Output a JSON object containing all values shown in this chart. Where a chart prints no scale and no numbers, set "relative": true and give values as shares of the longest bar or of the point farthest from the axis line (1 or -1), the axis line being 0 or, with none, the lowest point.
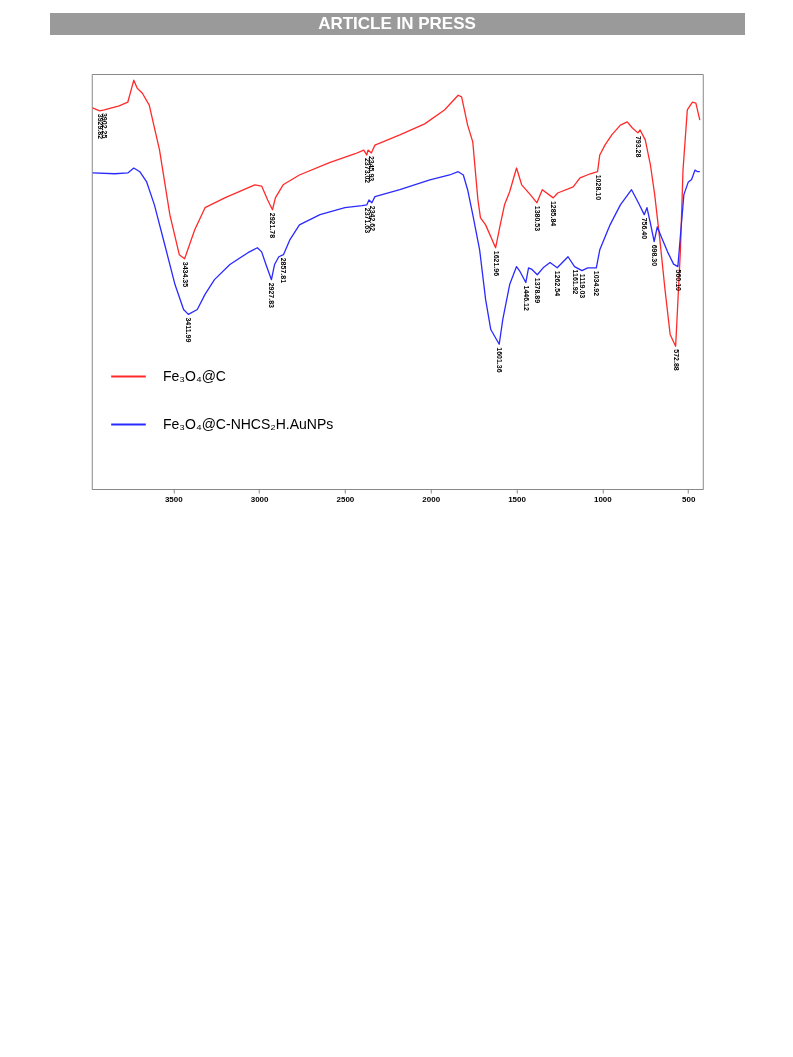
{
  "chart_data": {
    "type": "line",
    "relative": true,
    "xlim": [
      3975,
      415
    ],
    "xticks": [
      3500,
      3000,
      2500,
      2000,
      1500,
      1000,
      500
    ],
    "grid": false,
    "legend": "bottom left",
    "tick_labels": "x",
    "series": [
      {
        "name": "Fe₃O₄@C",
        "color": "#ff2a2a",
        "x": [
          3970,
          3929,
          3902,
          3815,
          3765,
          3730,
          3710,
          3680,
          3640,
          3580,
          3520,
          3465,
          3434,
          3375,
          3315,
          3200,
          3025,
          2985,
          2950,
          2922,
          2905,
          2860,
          2765,
          2590,
          2440,
          2390,
          2373,
          2365,
          2346,
          2325,
          2180,
          2035,
          1920,
          1840,
          1820,
          1785,
          1755,
          1725,
          1710,
          1680,
          1622,
          1595,
          1570,
          1540,
          1500,
          1470,
          1420,
          1381,
          1350,
          1286,
          1260,
          1170,
          1130,
          1070,
          1028,
          1015,
          985,
          945,
          895,
          855,
          825,
          793,
          780,
          750,
          720,
          695,
          665,
          635,
          605,
          573,
          565,
          545,
          530,
          505,
          475,
          455,
          432
        ],
        "values": [
          0.932,
          0.925,
          0.927,
          0.937,
          0.946,
          1.0,
          0.98,
          0.968,
          0.939,
          0.829,
          0.671,
          0.573,
          0.563,
          0.634,
          0.688,
          0.712,
          0.744,
          0.741,
          0.707,
          0.683,
          0.712,
          0.744,
          0.768,
          0.798,
          0.82,
          0.829,
          0.817,
          0.829,
          0.822,
          0.841,
          0.866,
          0.893,
          0.927,
          0.963,
          0.959,
          0.89,
          0.849,
          0.707,
          0.663,
          0.646,
          0.59,
          0.646,
          0.695,
          0.727,
          0.785,
          0.744,
          0.72,
          0.7,
          0.732,
          0.712,
          0.724,
          0.739,
          0.761,
          0.771,
          0.776,
          0.817,
          0.841,
          0.866,
          0.89,
          0.898,
          0.883,
          0.871,
          0.878,
          0.854,
          0.793,
          0.72,
          0.61,
          0.488,
          0.378,
          0.349,
          0.415,
          0.585,
          0.78,
          0.927,
          0.946,
          0.944,
          0.902
        ]
      },
      {
        "name": "Fe₃O₄@C-NHCS₂H.AuNPs",
        "color": "#2a2aff",
        "x": [
          3970,
          3840,
          3765,
          3730,
          3695,
          3655,
          3610,
          3550,
          3490,
          3440,
          3412,
          3360,
          3315,
          3260,
          3170,
          3065,
          3010,
          2985,
          2960,
          2928,
          2910,
          2885,
          2858,
          2820,
          2765,
          2645,
          2500,
          2400,
          2372,
          2360,
          2343,
          2325,
          2180,
          2005,
          1890,
          1840,
          1810,
          1785,
          1755,
          1715,
          1680,
          1650,
          1601,
          1580,
          1540,
          1500,
          1480,
          1446,
          1430,
          1410,
          1379,
          1345,
          1305,
          1263,
          1200,
          1162,
          1119,
          1085,
          1035,
          1015,
          955,
          895,
          830,
          790,
          756,
          740,
          720,
          698,
          680,
          650,
          620,
          585,
          560,
          545,
          525,
          500,
          480,
          460,
          445,
          432
        ],
        "values": [
          0.773,
          0.771,
          0.773,
          0.785,
          0.776,
          0.751,
          0.695,
          0.598,
          0.5,
          0.439,
          0.427,
          0.439,
          0.476,
          0.512,
          0.549,
          0.578,
          0.59,
          0.58,
          0.549,
          0.512,
          0.549,
          0.568,
          0.573,
          0.61,
          0.646,
          0.671,
          0.688,
          0.693,
          0.695,
          0.707,
          0.7,
          0.715,
          0.732,
          0.756,
          0.768,
          0.776,
          0.768,
          0.732,
          0.671,
          0.585,
          0.463,
          0.39,
          0.354,
          0.415,
          0.5,
          0.544,
          0.532,
          0.505,
          0.541,
          0.537,
          0.524,
          0.541,
          0.554,
          0.541,
          0.568,
          0.544,
          0.534,
          0.541,
          0.541,
          0.585,
          0.646,
          0.695,
          0.732,
          0.7,
          0.671,
          0.688,
          0.65,
          0.605,
          0.641,
          0.61,
          0.58,
          0.55,
          0.544,
          0.62,
          0.72,
          0.75,
          0.757,
          0.78,
          0.776,
          0.776
        ]
      }
    ],
    "annotations": [
      "ARTICLE IN PRESS",
      {
        "text": "3929.82",
        "x": 3929,
        "y": 0.925
      },
      {
        "text": "3902.25",
        "x": 3902,
        "y": 0.927
      },
      {
        "text": "3434.35",
        "x": 3434,
        "y": 0.563
      },
      {
        "text": "2921.78",
        "x": 2922,
        "y": 0.683
      },
      {
        "text": "2373.02",
        "x": 2373,
        "y": 0.817
      },
      {
        "text": "2345.93",
        "x": 2346,
        "y": 0.822
      },
      {
        "text": "1621.96",
        "x": 1622,
        "y": 0.59
      },
      {
        "text": "1380.53",
        "x": 1381,
        "y": 0.7
      },
      {
        "text": "1285.84",
        "x": 1286,
        "y": 0.712
      },
      {
        "text": "1028.10",
        "x": 1028,
        "y": 0.776
      },
      {
        "text": "793.28",
        "x": 793,
        "y": 0.871
      },
      {
        "text": "572.88",
        "x": 573,
        "y": 0.349
      },
      {
        "text": "3411.99",
        "x": 3412,
        "y": 0.427
      },
      {
        "text": "2927.83",
        "x": 2928,
        "y": 0.512
      },
      {
        "text": "2857.81",
        "x": 2858,
        "y": 0.573
      },
      {
        "text": "2371.63",
        "x": 2372,
        "y": 0.695
      },
      {
        "text": "2342.62",
        "x": 2343,
        "y": 0.7
      },
      {
        "text": "1601.36",
        "x": 1601,
        "y": 0.354
      },
      {
        "text": "1446.12",
        "x": 1446,
        "y": 0.505
      },
      {
        "text": "1378.89",
        "x": 1379,
        "y": 0.524
      },
      {
        "text": "1262.54",
        "x": 1263,
        "y": 0.541
      },
      {
        "text": "1161.92",
        "x": 1162,
        "y": 0.544
      },
      {
        "text": "1119.03",
        "x": 1119,
        "y": 0.534
      },
      {
        "text": "1034.92",
        "x": 1035,
        "y": 0.541
      },
      {
        "text": "756.40",
        "x": 756,
        "y": 0.671
      },
      {
        "text": "698.30",
        "x": 698,
        "y": 0.605
      },
      {
        "text": "560.10",
        "x": 560,
        "y": 0.544
      }
    ]
  }
}
